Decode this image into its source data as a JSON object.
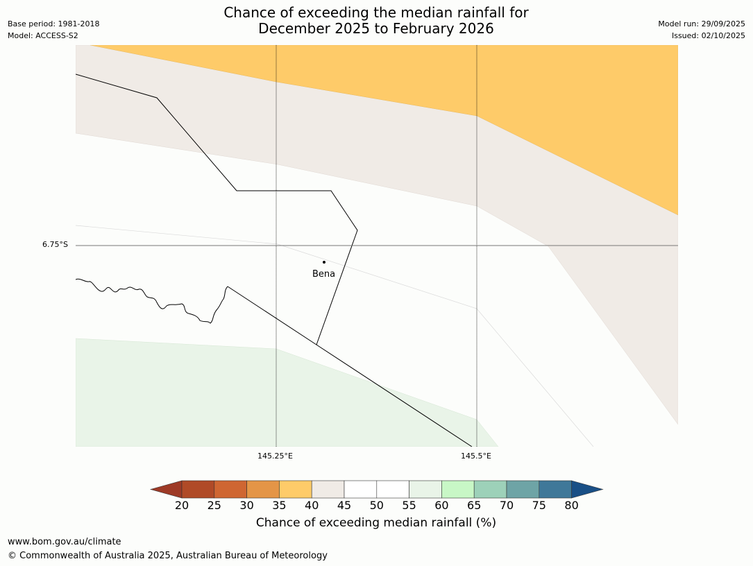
{
  "header": {
    "title_line1": "Chance of exceeding the median rainfall for",
    "title_line2": "December 2025 to February 2026",
    "base_period": "Base period: 1981-2018",
    "model": "Model: ACCESS-S2",
    "model_run": "Model run: 29/09/2025",
    "issued": "Issued: 02/10/2025"
  },
  "map": {
    "latitude_label": "6.75°S",
    "longitude_labels": [
      "145.25°E",
      "145.5°E"
    ],
    "town": "Bena",
    "zones": [
      {
        "category": "35-40",
        "color": "#fecb69"
      },
      {
        "category": "40-45",
        "color": "#f0ebe6"
      },
      {
        "category": "45-55",
        "color": "#fcfdfb"
      },
      {
        "category": "55-60",
        "color": "#e9f4e8"
      }
    ]
  },
  "colorbar": {
    "ticks": [
      "20",
      "25",
      "30",
      "35",
      "40",
      "45",
      "50",
      "55",
      "60",
      "65",
      "70",
      "75",
      "80"
    ],
    "colors": [
      "#9e3a26",
      "#b04a27",
      "#cf6632",
      "#e49547",
      "#fecb69",
      "#f0ebe6",
      "#ffffff",
      "#ffffff",
      "#e9f4e8",
      "#c8f7c6",
      "#9dd1b9",
      "#6ea4a6",
      "#3f7899",
      "#194f86"
    ],
    "label": "Chance of exceeding median rainfall (%)"
  },
  "footer": {
    "url": "www.bom.gov.au/climate",
    "copyright": "© Commonwealth of Australia 2025, Australian Bureau of Meteorology"
  }
}
